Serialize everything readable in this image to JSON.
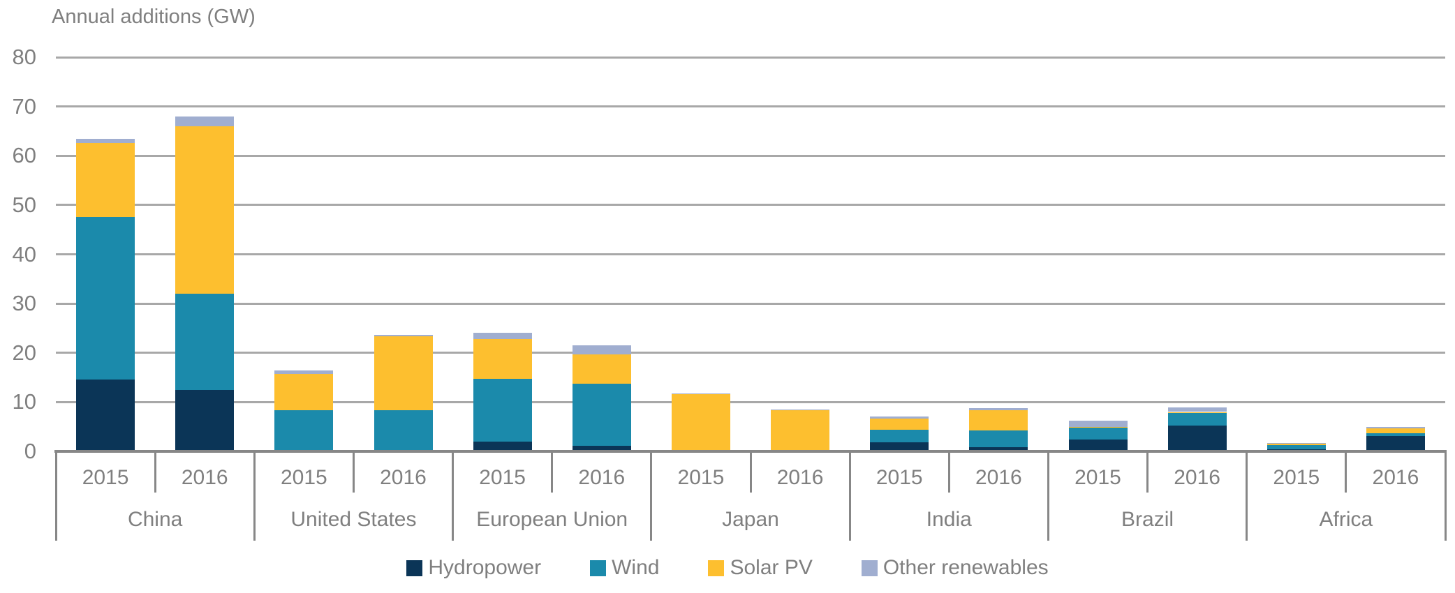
{
  "chart_data": {
    "type": "bar",
    "stacked": true,
    "title": "Annual additions (GW)",
    "unit": "GW",
    "ylim": [
      0,
      80
    ],
    "y_tick_labels": [
      "80",
      "70",
      "60",
      "50",
      "40",
      "30",
      "20",
      "10",
      "0"
    ],
    "grid": true,
    "legend_position": "bottom",
    "regions": [
      "China",
      "United States",
      "European Union",
      "Japan",
      "India",
      "Brazil",
      "Africa"
    ],
    "years": [
      "2015",
      "2016"
    ],
    "series": [
      {
        "name": "Hydropower",
        "color": "#0b3557",
        "values": [
          14.6,
          12.5,
          0.1,
          0.3,
          2.0,
          1.2,
          0.1,
          0.1,
          1.8,
          0.9,
          2.4,
          5.3,
          0.4,
          3.1
        ]
      },
      {
        "name": "Wind",
        "color": "#1b8aab",
        "values": [
          33.0,
          19.5,
          8.2,
          8.0,
          12.7,
          12.5,
          0.2,
          0.1,
          2.6,
          3.4,
          2.5,
          2.6,
          0.9,
          0.6
        ]
      },
      {
        "name": "Solar PV",
        "color": "#fdbf2f",
        "values": [
          15.0,
          34.0,
          7.4,
          15.1,
          8.1,
          6.0,
          11.3,
          8.1,
          2.3,
          4.0,
          0.1,
          0.1,
          0.3,
          1.0
        ]
      },
      {
        "name": "Other renewables",
        "color": "#a0aed0",
        "values": [
          0.9,
          2.0,
          0.7,
          0.3,
          1.3,
          1.8,
          0.2,
          0.2,
          0.4,
          0.5,
          1.2,
          0.9,
          0.1,
          0.2
        ]
      }
    ],
    "colors": {
      "gridline": "#a8a8a8",
      "axis_line": "#878787",
      "text": "#7f7f7f",
      "background": "#ffffff"
    }
  }
}
